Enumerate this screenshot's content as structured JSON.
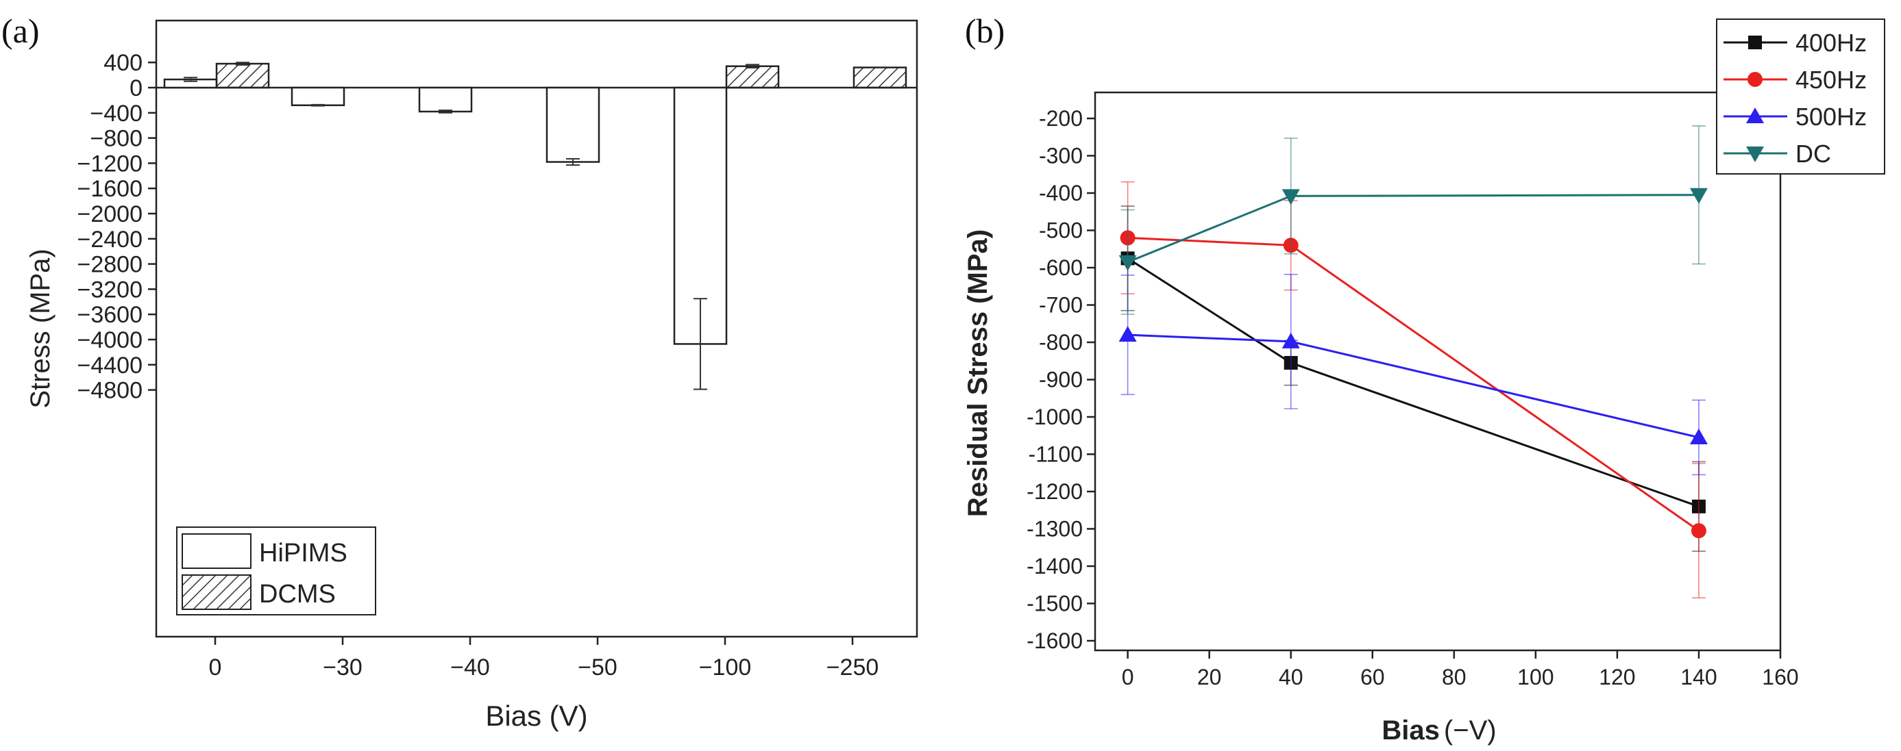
{
  "chart_data": [
    {
      "panel_label": "(a)",
      "type": "bar",
      "xlabel": "Bias (V)",
      "ylabel": "Stress (MPa)",
      "ylim": [
        -4900,
        600
      ],
      "yticks": [
        400,
        0,
        -400,
        -800,
        -1200,
        -1600,
        -2000,
        -2400,
        -2800,
        -3200,
        -3600,
        -4000,
        -4400,
        -4800
      ],
      "categories": [
        "0",
        "−30",
        "−40",
        "−50",
        "−100",
        "−250"
      ],
      "series": [
        {
          "name": "HiPIMS",
          "fill": "white",
          "values": [
            130,
            -280,
            -380,
            -1180,
            -4070,
            null
          ],
          "errors": [
            30,
            10,
            20,
            50,
            720,
            null
          ]
        },
        {
          "name": "DCMS",
          "fill": "hatch",
          "values": [
            380,
            null,
            null,
            null,
            340,
            320
          ],
          "errors": [
            20,
            null,
            null,
            null,
            25,
            null
          ]
        }
      ],
      "legend_position": "bottom-left"
    },
    {
      "panel_label": "(b)",
      "type": "line",
      "xlabel": "Bias",
      "xlabel_unit": "(−V)",
      "ylabel": "Residual Stress (MPa)",
      "xlim": [
        -8,
        160
      ],
      "ylim": [
        -1600,
        -150
      ],
      "xticks": [
        0,
        20,
        40,
        60,
        80,
        100,
        120,
        140,
        160
      ],
      "yticks": [
        -200,
        -300,
        -400,
        -500,
        -600,
        -700,
        -800,
        -900,
        -1000,
        -1100,
        -1200,
        -1300,
        -1400,
        -1500,
        -1600
      ],
      "series": [
        {
          "name": "400Hz",
          "color": "#111111",
          "marker": "square",
          "x": [
            0,
            40,
            140
          ],
          "y": [
            -575,
            -855,
            -1240
          ],
          "err": [
            140,
            60,
            120
          ]
        },
        {
          "name": "450Hz",
          "color": "#e8211f",
          "marker": "circle",
          "x": [
            0,
            40,
            140
          ],
          "y": [
            -520,
            -540,
            -1305
          ],
          "err": [
            150,
            120,
            180
          ]
        },
        {
          "name": "500Hz",
          "color": "#2b1ff2",
          "marker": "triangle-up",
          "x": [
            0,
            40,
            140
          ],
          "y": [
            -780,
            -798,
            -1055
          ],
          "err": [
            160,
            180,
            100
          ]
        },
        {
          "name": "DC",
          "color": "#1d7173",
          "marker": "triangle-down",
          "x": [
            0,
            40,
            140
          ],
          "y": [
            -585,
            -408,
            -405
          ],
          "err": [
            140,
            155,
            185
          ]
        }
      ],
      "legend_position": "top-right"
    }
  ]
}
